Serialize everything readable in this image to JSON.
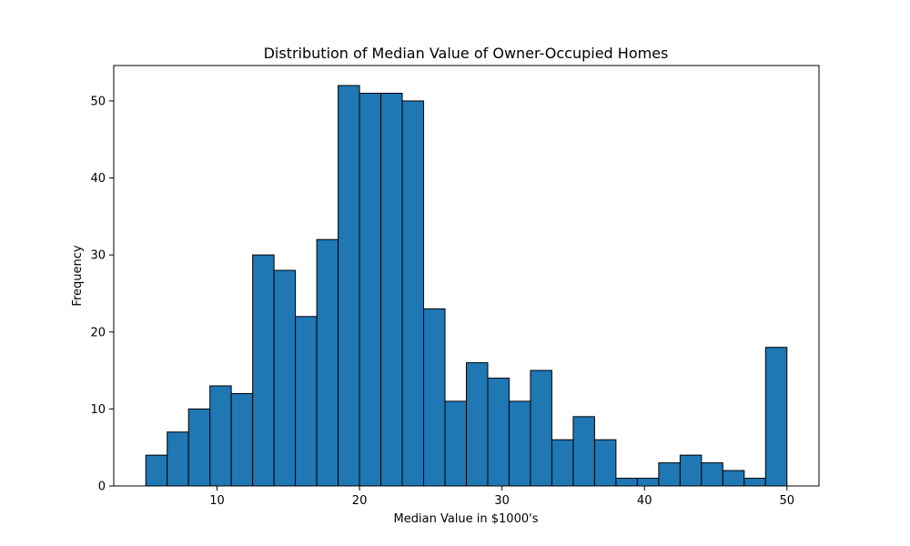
{
  "chart_data": {
    "type": "bar",
    "title": "Distribution of Median Value of Owner-Occupied Homes",
    "xlabel": "Median Value in $1000's",
    "ylabel": "Frequency",
    "bin_start": 5,
    "bin_width": 1.5,
    "values": [
      4,
      7,
      10,
      13,
      12,
      30,
      28,
      22,
      32,
      52,
      51,
      51,
      50,
      23,
      11,
      16,
      14,
      11,
      15,
      6,
      9,
      6,
      1,
      1,
      3,
      4,
      3,
      2,
      1,
      18
    ],
    "xlim": [
      2.75,
      52.25
    ],
    "ylim": [
      0,
      54.6
    ],
    "xticks": [
      10,
      20,
      30,
      40,
      50
    ],
    "yticks": [
      0,
      10,
      20,
      30,
      40,
      50
    ],
    "grid": false,
    "bar_color": "#1f77b4",
    "edge_color": "#000000"
  }
}
